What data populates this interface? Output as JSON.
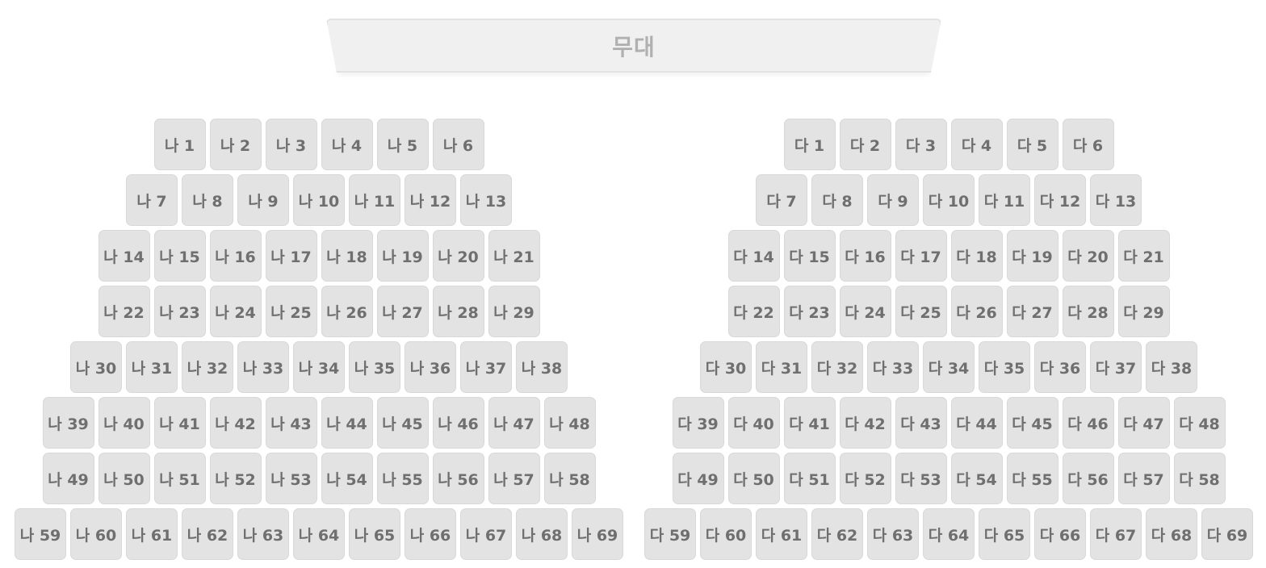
{
  "stage": {
    "label": "무대"
  },
  "sections": [
    {
      "id": "na",
      "prefix": "나",
      "rows": [
        6,
        7,
        8,
        8,
        9,
        10,
        10,
        11
      ]
    },
    {
      "id": "da",
      "prefix": "다",
      "rows": [
        6,
        7,
        8,
        8,
        9,
        10,
        10,
        11
      ]
    }
  ],
  "colors": {
    "seat_bg": "#e3e3e3",
    "seat_text": "#6f6f6f",
    "stage_bg": "#f0f0f0",
    "stage_text": "#b0b0b0"
  }
}
